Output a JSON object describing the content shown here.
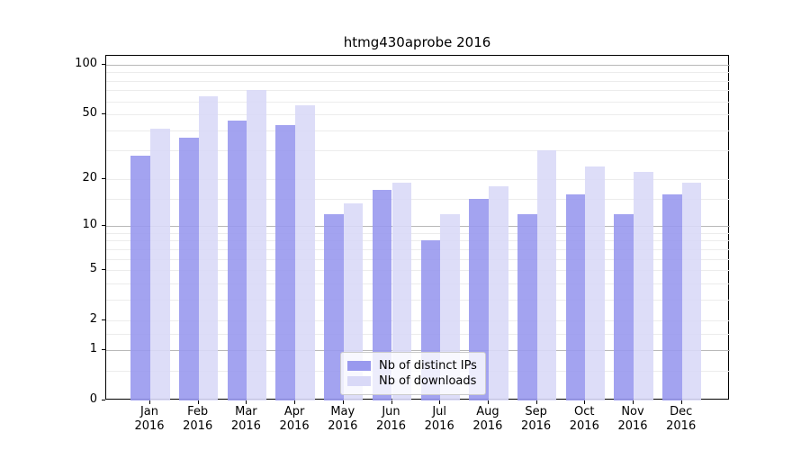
{
  "title": "htmg430aprobe 2016",
  "legend": {
    "position": "lower center",
    "items": [
      {
        "label": "Nb of distinct IPs",
        "color": "#9999ee"
      },
      {
        "label": "Nb of downloads",
        "color": "#d9d9f7"
      }
    ]
  },
  "chart_data": {
    "type": "bar",
    "title": "htmg430aprobe 2016",
    "categories": [
      "Jan 2016",
      "Feb 2016",
      "Mar 2016",
      "Apr 2016",
      "May 2016",
      "Jun 2016",
      "Jul 2016",
      "Aug 2016",
      "Sep 2016",
      "Oct 2016",
      "Nov 2016",
      "Dec 2016"
    ],
    "series": [
      {
        "name": "Nb of distinct IPs",
        "color": "#9999ee",
        "values": [
          28,
          36,
          46,
          43,
          12,
          17,
          8,
          15,
          12,
          16,
          12,
          16
        ]
      },
      {
        "name": "Nb of downloads",
        "color": "#d9d9f7",
        "values": [
          41,
          64,
          70,
          57,
          14,
          19,
          12,
          18,
          30,
          24,
          22,
          19
        ]
      }
    ],
    "xlabel": "",
    "ylabel": "",
    "yscale": "log(1+x)",
    "ylim": [
      0,
      113
    ],
    "ytick_values": [
      0,
      1,
      2,
      5,
      10,
      20,
      50,
      100
    ],
    "grid": {
      "major_values": [
        1,
        10,
        100
      ],
      "minor_values": [
        0.5,
        1.5,
        2,
        3,
        4,
        5,
        6,
        7,
        8,
        9,
        15,
        20,
        30,
        40,
        50,
        60,
        70,
        80,
        90
      ]
    },
    "legend_position": "lower center"
  }
}
